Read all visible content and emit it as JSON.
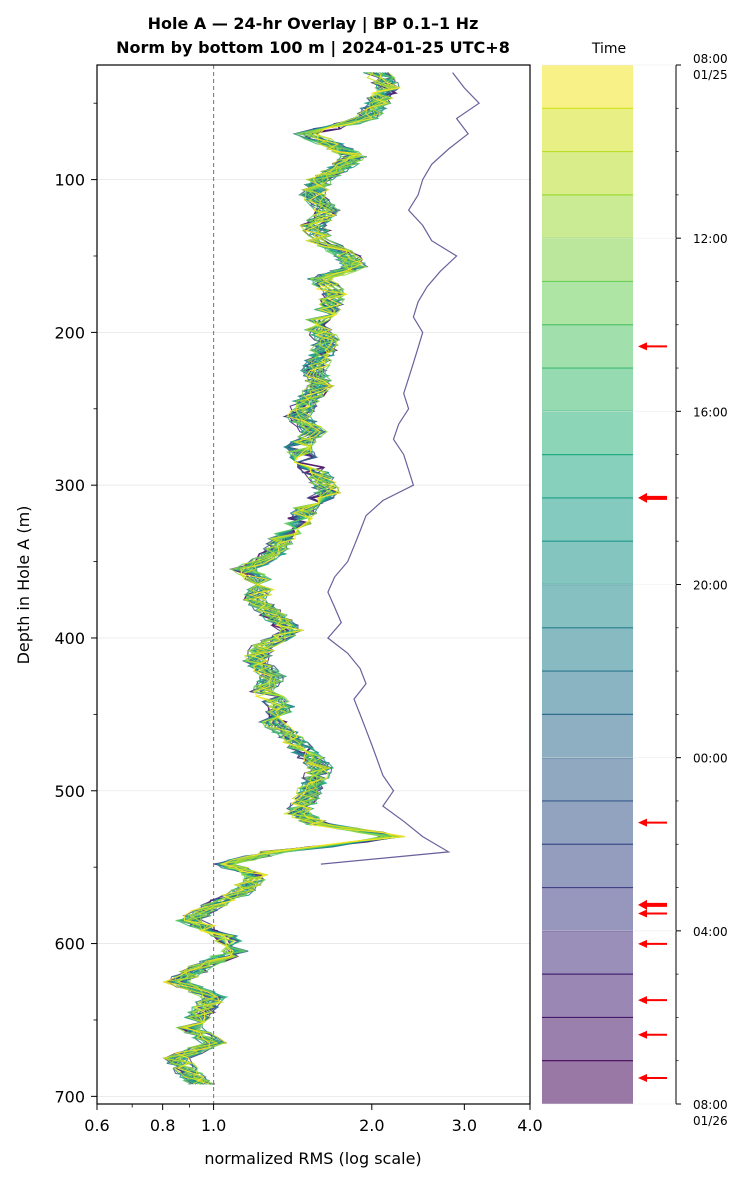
{
  "chart_data": {
    "type": "line",
    "title_line1": "Hole A — 24-hr Overlay  |  BP 0.1–1 Hz",
    "title_line2": "Norm by bottom 100 m  |  2024-01-25 UTC+8",
    "xlabel": "normalized RMS  (log scale)",
    "ylabel": "Depth in Hole A (m)",
    "x_scale": "log",
    "xlim": [
      0.6,
      4.0
    ],
    "ylim": [
      705,
      25
    ],
    "x_ticks": [
      0.6,
      0.8,
      1.0,
      2.0,
      3.0,
      4.0
    ],
    "x_tick_labels": [
      "0.6",
      "0.8",
      "1.0",
      "2.0",
      "3.0",
      "4.0"
    ],
    "y_ticks": [
      100,
      200,
      300,
      400,
      500,
      600,
      700
    ],
    "y_tick_labels": [
      "100",
      "200",
      "300",
      "400",
      "500",
      "600",
      "700"
    ],
    "reference_line_x": 1.0,
    "grid": "horizontal",
    "base_profile": {
      "depth": [
        30,
        40,
        50,
        60,
        70,
        80,
        85,
        92,
        100,
        110,
        120,
        130,
        140,
        150,
        157,
        165,
        175,
        185,
        195,
        205,
        215,
        225,
        235,
        245,
        255,
        265,
        275,
        285,
        295,
        305,
        315,
        325,
        335,
        345,
        355,
        365,
        375,
        385,
        395,
        405,
        415,
        425,
        435,
        445,
        455,
        465,
        475,
        485,
        495,
        505,
        515,
        522,
        530,
        540,
        548,
        555,
        565,
        575,
        585,
        595,
        605,
        615,
        625,
        635,
        645,
        655,
        665,
        675,
        685,
        692
      ],
      "rms": [
        2.05,
        2.15,
        2.05,
        1.95,
        1.5,
        1.75,
        1.85,
        1.75,
        1.6,
        1.55,
        1.65,
        1.55,
        1.6,
        1.8,
        1.85,
        1.6,
        1.7,
        1.65,
        1.55,
        1.65,
        1.6,
        1.55,
        1.6,
        1.5,
        1.45,
        1.55,
        1.45,
        1.5,
        1.6,
        1.65,
        1.5,
        1.45,
        1.35,
        1.3,
        1.15,
        1.25,
        1.2,
        1.3,
        1.4,
        1.25,
        1.2,
        1.3,
        1.25,
        1.35,
        1.3,
        1.4,
        1.5,
        1.6,
        1.55,
        1.5,
        1.45,
        1.6,
        2.2,
        1.3,
        1.05,
        1.2,
        1.15,
        1.0,
        0.9,
        1.05,
        1.1,
        0.95,
        0.85,
        1.0,
        0.95,
        0.9,
        1.0,
        0.85,
        0.9,
        0.95
      ]
    },
    "outlier_profile": {
      "depth": [
        30,
        40,
        50,
        60,
        70,
        80,
        90,
        100,
        110,
        120,
        130,
        140,
        150,
        160,
        170,
        180,
        190,
        200,
        210,
        220,
        230,
        240,
        250,
        260,
        270,
        280,
        290,
        300,
        310,
        320,
        330,
        340,
        350,
        360,
        370,
        380,
        390,
        400,
        410,
        420,
        430,
        440,
        450,
        460,
        470,
        480,
        490,
        500,
        510,
        520,
        530,
        540,
        548
      ],
      "rms": [
        2.85,
        3.0,
        3.2,
        2.9,
        3.05,
        2.8,
        2.6,
        2.5,
        2.45,
        2.35,
        2.5,
        2.6,
        2.9,
        2.7,
        2.55,
        2.45,
        2.4,
        2.5,
        2.45,
        2.4,
        2.35,
        2.3,
        2.35,
        2.25,
        2.2,
        2.3,
        2.35,
        2.4,
        2.1,
        1.95,
        1.9,
        1.85,
        1.8,
        1.7,
        1.65,
        1.7,
        1.75,
        1.65,
        1.8,
        1.9,
        1.95,
        1.85,
        1.9,
        1.95,
        2.0,
        2.05,
        2.1,
        2.2,
        2.1,
        2.3,
        2.5,
        2.8,
        1.6
      ]
    },
    "colorbar": {
      "label": "Time",
      "colors": [
        "#440154",
        "#481f70",
        "#443983",
        "#3b528b",
        "#31688e",
        "#287c8e",
        "#21918c",
        "#20a486",
        "#35b779",
        "#5ec962",
        "#90d743",
        "#c8e020",
        "#fde725"
      ],
      "n_bands": 24,
      "tick_labels": [
        {
          "label": "08:00",
          "sub": "01/25"
        },
        {
          "label": "12:00",
          "sub": ""
        },
        {
          "label": "16:00",
          "sub": ""
        },
        {
          "label": "20:00",
          "sub": ""
        },
        {
          "label": "00:00",
          "sub": ""
        },
        {
          "label": "04:00",
          "sub": ""
        },
        {
          "label": "08:00",
          "sub": "01/26"
        }
      ],
      "arrow_hours_from_start": [
        6.5,
        10.0,
        17.5,
        19.4,
        19.6,
        20.3,
        21.6,
        22.4,
        23.4
      ],
      "bold_arrow_hours_from_start": [
        10.0,
        19.4
      ]
    }
  }
}
